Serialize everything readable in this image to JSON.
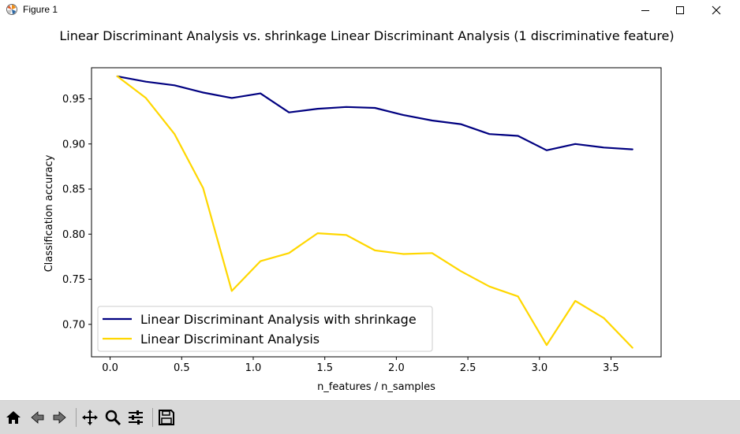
{
  "window": {
    "title": "Figure 1",
    "buttons": [
      "minimize",
      "maximize",
      "close"
    ]
  },
  "toolbar": {
    "icons": [
      "home-icon",
      "back-icon",
      "forward-icon",
      "pan-icon",
      "zoom-icon",
      "configure-subplots-icon",
      "save-icon"
    ]
  },
  "chart_data": {
    "type": "line",
    "title": "Linear Discriminant Analysis vs. shrinkage Linear Discriminant Analysis (1 discriminative feature)",
    "xlabel": "n_features / n_samples",
    "ylabel": "Classification accuracy",
    "xlim": [
      -0.13,
      3.85
    ],
    "ylim": [
      0.664,
      0.9845
    ],
    "xticks": [
      0.0,
      0.5,
      1.0,
      1.5,
      2.0,
      2.5,
      3.0,
      3.5
    ],
    "xtick_labels": [
      "0.0",
      "0.5",
      "1.0",
      "1.5",
      "2.0",
      "2.5",
      "3.0",
      "3.5"
    ],
    "yticks": [
      0.7,
      0.75,
      0.8,
      0.85,
      0.9,
      0.95
    ],
    "ytick_labels": [
      "0.70",
      "0.75",
      "0.80",
      "0.85",
      "0.90",
      "0.95"
    ],
    "grid": false,
    "legend_position": "lower-left",
    "x": [
      0.05,
      0.25,
      0.45,
      0.65,
      0.85,
      1.05,
      1.25,
      1.45,
      1.65,
      1.85,
      2.05,
      2.25,
      2.45,
      2.65,
      2.85,
      3.05,
      3.25,
      3.45,
      3.65
    ],
    "series": [
      {
        "name": "Linear Discriminant Analysis with shrinkage",
        "color": "#000080",
        "values": [
          0.975,
          0.969,
          0.965,
          0.957,
          0.951,
          0.956,
          0.935,
          0.939,
          0.941,
          0.94,
          0.932,
          0.926,
          0.922,
          0.911,
          0.909,
          0.893,
          0.9,
          0.896,
          0.894
        ]
      },
      {
        "name": "Linear Discriminant Analysis",
        "color": "#ffd700",
        "values": [
          0.975,
          0.951,
          0.911,
          0.851,
          0.737,
          0.77,
          0.779,
          0.801,
          0.799,
          0.782,
          0.778,
          0.779,
          0.759,
          0.742,
          0.731,
          0.677,
          0.726,
          0.707,
          0.674
        ]
      }
    ]
  }
}
